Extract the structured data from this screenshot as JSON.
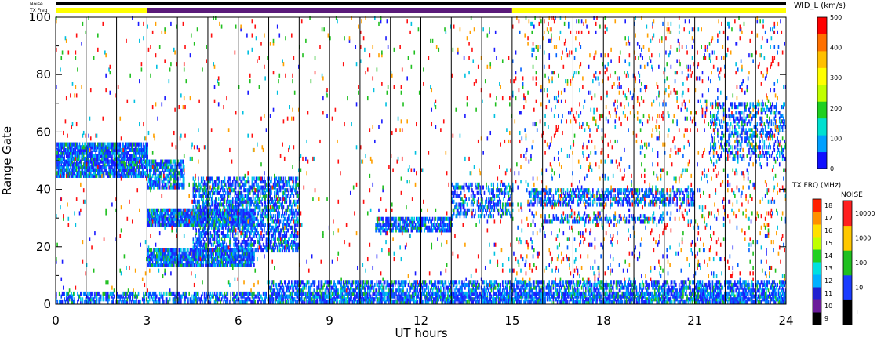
{
  "chart_data": {
    "type": "heatmap",
    "ylabel": "Range Gate",
    "xlabel": "UT hours",
    "x_ticks": [
      "0",
      "3",
      "6",
      "9",
      "12",
      "15",
      "18",
      "21",
      "24"
    ],
    "y_ticks": [
      "0",
      "20",
      "40",
      "60",
      "80",
      "100"
    ],
    "xlim": [
      0,
      24
    ],
    "ylim": [
      0,
      100
    ],
    "vertical_lines_every_hour": true,
    "top_bars": {
      "noise_label": "Noise",
      "freq_label": "TX Freq",
      "noise_color": "#000000",
      "freq_segments": [
        {
          "from": 0,
          "to": 3,
          "color": "#ffff00"
        },
        {
          "from": 3,
          "to": 15,
          "color": "#5a1a7a"
        },
        {
          "from": 15,
          "to": 24,
          "color": "#ffff00"
        }
      ]
    },
    "scatter_bands": [
      {
        "t0": 0.0,
        "t1": 3.0,
        "g0": 44,
        "g1": 56,
        "density": 0.85,
        "palette": "blue"
      },
      {
        "t0": 3.0,
        "t1": 4.2,
        "g0": 40,
        "g1": 50,
        "density": 0.75,
        "palette": "blue"
      },
      {
        "t0": 3.0,
        "t1": 6.5,
        "g0": 13,
        "g1": 19,
        "density": 0.9,
        "palette": "blue"
      },
      {
        "t0": 3.0,
        "t1": 6.5,
        "g0": 27,
        "g1": 33,
        "density": 0.9,
        "palette": "blue"
      },
      {
        "t0": 4.5,
        "t1": 8.0,
        "g0": 18,
        "g1": 44,
        "density": 0.55,
        "palette": "blue"
      },
      {
        "t0": 10.5,
        "t1": 13.0,
        "g0": 25,
        "g1": 30,
        "density": 0.7,
        "palette": "blue"
      },
      {
        "t0": 13.0,
        "t1": 15.0,
        "g0": 30,
        "g1": 42,
        "density": 0.35,
        "palette": "blue"
      },
      {
        "t0": 15.5,
        "t1": 21.0,
        "g0": 34,
        "g1": 40,
        "density": 0.5,
        "palette": "blue"
      },
      {
        "t0": 16.0,
        "t1": 20.0,
        "g0": 28,
        "g1": 31,
        "density": 0.4,
        "palette": "blue"
      },
      {
        "t0": 21.5,
        "t1": 24.0,
        "g0": 50,
        "g1": 70,
        "density": 0.3,
        "palette": "blue"
      },
      {
        "t0": 0.0,
        "t1": 24.0,
        "g0": 0,
        "g1": 4,
        "density": 0.5,
        "palette": "blue"
      },
      {
        "t0": 7.0,
        "t1": 24.0,
        "g0": 0,
        "g1": 8,
        "density": 0.55,
        "palette": "blue"
      },
      {
        "t0": 15.0,
        "t1": 24.0,
        "g0": 8,
        "g1": 100,
        "density": 0.06,
        "palette": "mixed"
      },
      {
        "t0": 0.0,
        "t1": 15.0,
        "g0": 4,
        "g1": 100,
        "density": 0.018,
        "palette": "sparse"
      }
    ],
    "colorbars": {
      "width": {
        "label": "WID_L (km/s)",
        "ticks": [
          "0",
          "100",
          "200",
          "300",
          "400",
          "500"
        ],
        "colors": [
          "#1010ff",
          "#00a0ff",
          "#00e0d0",
          "#20d020",
          "#c0ff00",
          "#ffff00",
          "#ffc000",
          "#ff7000",
          "#ff0000"
        ]
      },
      "txfreq": {
        "label": "TX FRQ (MHz)",
        "ticks": [
          "9",
          "10",
          "11",
          "12",
          "13",
          "14",
          "15",
          "16",
          "17",
          "18"
        ],
        "colors": [
          "#000000",
          "#6a1b9a",
          "#2020d0",
          "#00b0ff",
          "#00e0e0",
          "#20d020",
          "#c0ff00",
          "#ffe000",
          "#ff9000",
          "#ff2000"
        ]
      },
      "noise": {
        "label": "NOISE",
        "ticks": [
          "1",
          "10",
          "100",
          "1000",
          "10000"
        ],
        "colors": [
          "#000000",
          "#1a3cff",
          "#20c020",
          "#ffc800",
          "#ff2020"
        ]
      }
    }
  }
}
